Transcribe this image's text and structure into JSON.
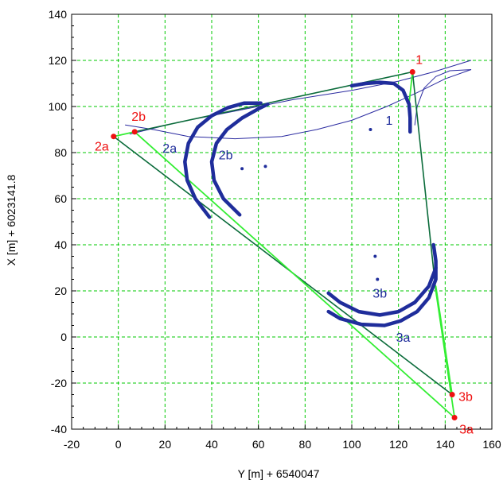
{
  "chart_data": {
    "type": "line",
    "title": "",
    "xlabel": "Y [m] + 6540047",
    "ylabel": "X [m] + 6023141.8",
    "xlim": [
      -20,
      160
    ],
    "ylim": [
      -40,
      140
    ],
    "xticks": [
      -20,
      0,
      20,
      40,
      60,
      80,
      100,
      120,
      140,
      160
    ],
    "yticks": [
      -40,
      -20,
      0,
      20,
      40,
      60,
      80,
      100,
      120,
      140
    ],
    "grid": true,
    "colors": {
      "grid": "#00c800",
      "thick_arc": "#1f2d9b",
      "thin_line": "#2a2aa0",
      "dark_green": "#0a6b3a",
      "bright_green": "#33ee33",
      "point_red": "#ee1111",
      "point_label_red": "#ee1111",
      "arc_label_blue": "#1f2d9b"
    },
    "points": [
      {
        "label": "1",
        "x": 126,
        "y": 115
      },
      {
        "label": "2a",
        "x": -2,
        "y": 87
      },
      {
        "label": "2b",
        "x": 7,
        "y": 89
      },
      {
        "label": "3a",
        "x": 144,
        "y": -35
      },
      {
        "label": "3b",
        "x": 143,
        "y": -25
      }
    ],
    "centers": [
      {
        "x": 108,
        "y": 90
      },
      {
        "x": 53,
        "y": 73
      },
      {
        "x": 63,
        "y": 74
      },
      {
        "x": 110,
        "y": 35
      },
      {
        "x": 111,
        "y": 25
      }
    ],
    "arc_labels": [
      {
        "label": "1",
        "x": 116,
        "y": 92
      },
      {
        "label": "2a",
        "x": 22,
        "y": 80
      },
      {
        "label": "2b",
        "x": 46,
        "y": 77
      },
      {
        "label": "3b",
        "x": 112,
        "y": 17
      },
      {
        "label": "3a",
        "x": 122,
        "y": -2
      }
    ],
    "series": [
      {
        "style": "thick",
        "points": [
          [
            100,
            109
          ],
          [
            106,
            110
          ],
          [
            112,
            110.5
          ],
          [
            118,
            110
          ],
          [
            122,
            107
          ],
          [
            124.5,
            101
          ],
          [
            125,
            95
          ],
          [
            125,
            89
          ]
        ]
      },
      {
        "style": "thick",
        "points": [
          [
            39,
            52
          ],
          [
            33,
            60
          ],
          [
            29.5,
            68
          ],
          [
            28.5,
            76
          ],
          [
            30,
            84
          ],
          [
            34,
            91
          ],
          [
            40,
            96
          ],
          [
            47,
            99.5
          ],
          [
            54,
            101.5
          ],
          [
            61,
            101.5
          ]
        ]
      },
      {
        "style": "thick",
        "points": [
          [
            52,
            53
          ],
          [
            45,
            60
          ],
          [
            41,
            68
          ],
          [
            40,
            76
          ],
          [
            42,
            84
          ],
          [
            46.5,
            90
          ],
          [
            53,
            95
          ],
          [
            60,
            99
          ],
          [
            64,
            101
          ]
        ]
      },
      {
        "style": "thick",
        "points": [
          [
            135,
            40
          ],
          [
            136,
            33
          ],
          [
            136,
            25
          ],
          [
            133,
            17
          ],
          [
            128,
            11
          ],
          [
            121,
            7
          ],
          [
            114,
            5
          ],
          [
            104,
            5.5
          ],
          [
            95,
            8
          ],
          [
            90,
            11
          ]
        ]
      },
      {
        "style": "thick",
        "points": [
          [
            136,
            30
          ],
          [
            133,
            22
          ],
          [
            127,
            15
          ],
          [
            120,
            11
          ],
          [
            112,
            9.5
          ],
          [
            103,
            11
          ],
          [
            95,
            15
          ],
          [
            90,
            19
          ]
        ]
      },
      {
        "style": "thin",
        "points": [
          [
            3,
            92
          ],
          [
            15,
            90
          ],
          [
            30,
            87
          ],
          [
            50,
            86
          ],
          [
            70,
            87
          ],
          [
            85,
            90
          ],
          [
            100,
            94
          ],
          [
            115,
            100
          ],
          [
            128,
            106
          ],
          [
            140,
            112
          ],
          [
            151,
            116
          ]
        ]
      },
      {
        "style": "thin",
        "points": [
          [
            5,
            88
          ],
          [
            25,
            93
          ],
          [
            50,
            98
          ],
          [
            75,
            103
          ],
          [
            100,
            107
          ],
          [
            120,
            111
          ],
          [
            135,
            115
          ],
          [
            151,
            120
          ]
        ]
      },
      {
        "style": "thin",
        "points": [
          [
            127,
            92
          ],
          [
            128,
            100
          ],
          [
            131,
            108
          ],
          [
            136,
            113
          ],
          [
            142,
            115.5
          ],
          [
            151,
            116
          ]
        ]
      },
      {
        "style": "dark",
        "points": [
          [
            7,
            89
          ],
          [
            126,
            115
          ]
        ]
      },
      {
        "style": "dark",
        "points": [
          [
            -2,
            87
          ],
          [
            143,
            -25
          ]
        ]
      },
      {
        "style": "dark",
        "points": [
          [
            126,
            115
          ],
          [
            136,
            20
          ]
        ]
      },
      {
        "style": "bright",
        "points": [
          [
            126,
            115
          ],
          [
            124.5,
            101
          ]
        ]
      },
      {
        "style": "bright",
        "points": [
          [
            7,
            89
          ],
          [
            144,
            -35
          ]
        ]
      },
      {
        "style": "bright",
        "points": [
          [
            -2,
            87
          ],
          [
            7,
            89
          ]
        ]
      },
      {
        "style": "bright",
        "points": [
          [
            136,
            22
          ],
          [
            143,
            -25
          ]
        ]
      },
      {
        "style": "bright",
        "points": [
          [
            136,
            20
          ],
          [
            144,
            -35
          ]
        ]
      }
    ]
  }
}
